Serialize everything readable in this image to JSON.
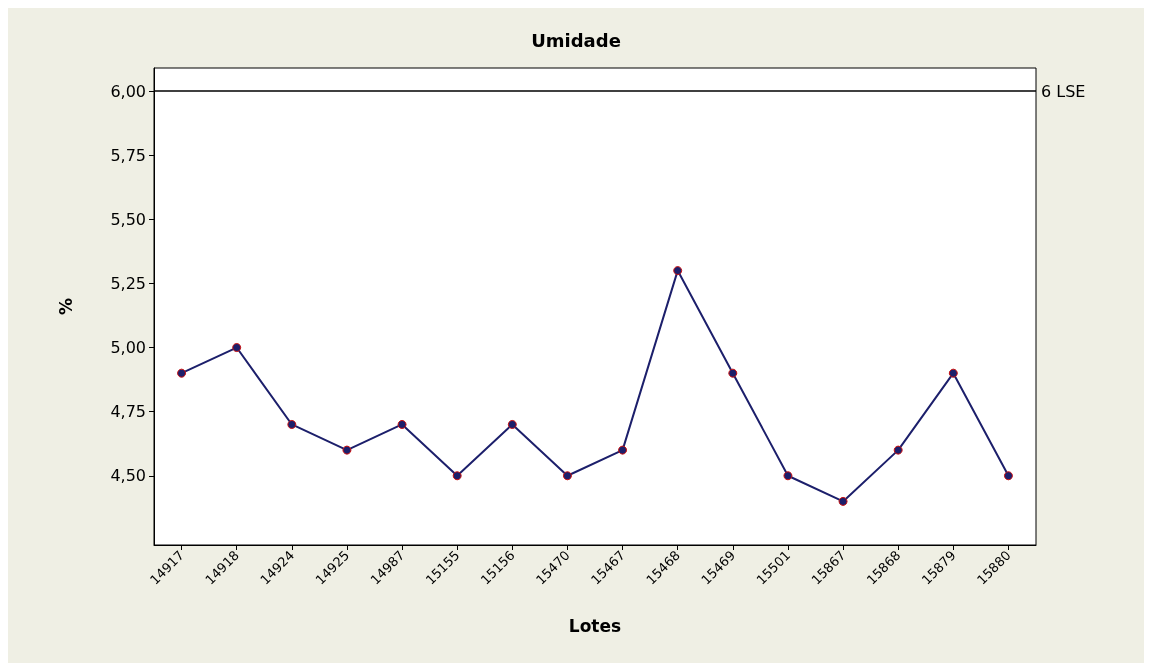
{
  "chart_data": {
    "type": "line",
    "title": "Umidade",
    "xlabel": "Lotes",
    "ylabel": "%",
    "categories": [
      "14917",
      "14918",
      "14924",
      "14925",
      "14987",
      "15155",
      "15156",
      "15470",
      "15467",
      "15468",
      "15469",
      "15501",
      "15867",
      "15868",
      "15879",
      "15880"
    ],
    "series": [
      {
        "color": "#1c1f6b",
        "values": [
          4.9,
          5.0,
          4.7,
          4.6,
          4.7,
          4.5,
          4.7,
          4.5,
          4.6,
          5.3,
          4.9,
          4.5,
          4.4,
          4.6,
          4.9,
          4.5
        ]
      }
    ],
    "ylim": [
      4.23,
      6.09
    ],
    "yticks": [
      {
        "value": 4.5,
        "label": "4,50"
      },
      {
        "value": 4.75,
        "label": "4,75"
      },
      {
        "value": 5.0,
        "label": "5,00"
      },
      {
        "value": 5.25,
        "label": "5,25"
      },
      {
        "value": 5.5,
        "label": "5,50"
      },
      {
        "value": 5.75,
        "label": "5,75"
      },
      {
        "value": 6.0,
        "label": "6,00"
      }
    ],
    "ref_lines": [
      {
        "axis": "y",
        "value": 6,
        "label": "6 LSE",
        "color": "#000000"
      }
    ],
    "marker": "circle"
  }
}
